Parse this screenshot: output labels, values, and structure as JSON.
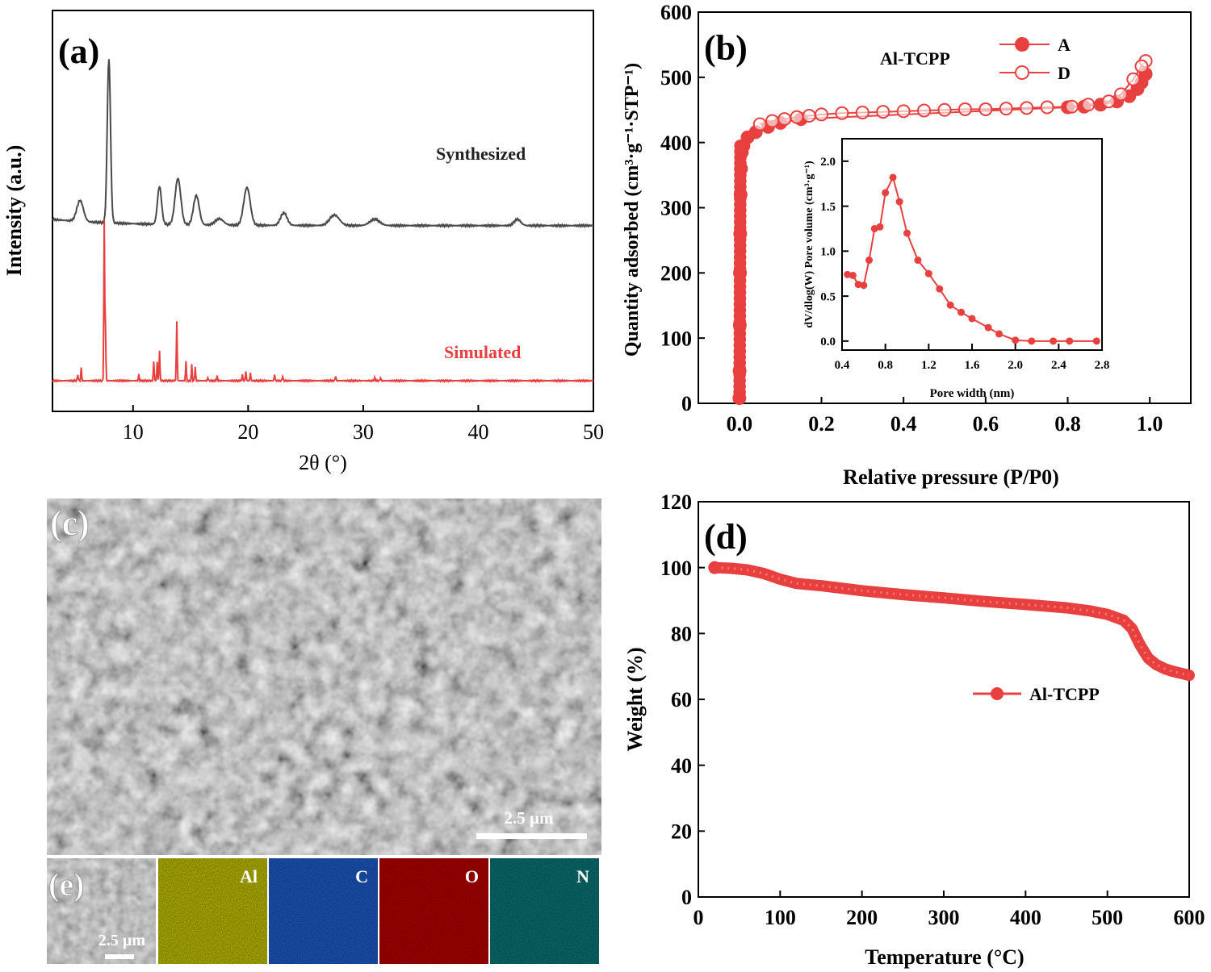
{
  "panels": {
    "a": {
      "tag": "(a)"
    },
    "b": {
      "tag": "(b)"
    },
    "c": {
      "tag": "(c)",
      "scalebar": "2.5 µm"
    },
    "d": {
      "tag": "(d)"
    },
    "e": {
      "tag": "(e)",
      "scalebar": "2.5 µm",
      "maps": [
        {
          "label": "Al",
          "color": "#c8c800"
        },
        {
          "label": "C",
          "color": "#1f5fd0"
        },
        {
          "label": "O",
          "color": "#c00000"
        },
        {
          "label": "N",
          "color": "#0b7b7b"
        }
      ]
    }
  },
  "colors": {
    "red": "#e8403f",
    "gray": "#4a4a4a"
  },
  "chart_data": [
    {
      "id": "a",
      "type": "line",
      "xlabel": "2θ (°)",
      "ylabel": "Intensity (a.u.)",
      "xlim": [
        3,
        50
      ],
      "xticks": [
        10,
        20,
        30,
        40,
        50
      ],
      "series": [
        {
          "name": "Synthesized",
          "color": "#4a4a4a",
          "peaks": [
            [
              5.4,
              0.1,
              0.4
            ],
            [
              7.9,
              0.78,
              0.2
            ],
            [
              12.3,
              0.18,
              0.25
            ],
            [
              13.9,
              0.22,
              0.35
            ],
            [
              15.5,
              0.14,
              0.35
            ],
            [
              17.5,
              0.03,
              0.5
            ],
            [
              19.9,
              0.18,
              0.4
            ],
            [
              23.1,
              0.06,
              0.4
            ],
            [
              27.5,
              0.05,
              0.6
            ],
            [
              31.0,
              0.03,
              0.6
            ],
            [
              43.4,
              0.03,
              0.4
            ]
          ]
        },
        {
          "name": "Simulated",
          "color": "#e8403f",
          "peaks": [
            [
              5.2,
              0.04,
              0.05
            ],
            [
              5.5,
              0.08,
              0.05
            ],
            [
              7.5,
              1.0,
              0.05
            ],
            [
              7.6,
              0.35,
              0.05
            ],
            [
              10.5,
              0.04,
              0.05
            ],
            [
              11.8,
              0.12,
              0.05
            ],
            [
              12.1,
              0.12,
              0.05
            ],
            [
              12.3,
              0.19,
              0.05
            ],
            [
              13.8,
              0.37,
              0.05
            ],
            [
              14.6,
              0.12,
              0.05
            ],
            [
              15.1,
              0.1,
              0.05
            ],
            [
              15.4,
              0.09,
              0.05
            ],
            [
              16.5,
              0.02,
              0.05
            ],
            [
              17.3,
              0.03,
              0.05
            ],
            [
              19.5,
              0.04,
              0.05
            ],
            [
              19.8,
              0.06,
              0.05
            ],
            [
              20.2,
              0.05,
              0.05
            ],
            [
              22.3,
              0.04,
              0.05
            ],
            [
              23.0,
              0.03,
              0.05
            ],
            [
              27.6,
              0.03,
              0.05
            ],
            [
              31.0,
              0.02,
              0.05
            ],
            [
              31.5,
              0.02,
              0.05
            ]
          ]
        }
      ]
    },
    {
      "id": "b",
      "type": "line",
      "xlabel": "Relative pressure (P/P0)",
      "ylabel": "Quantity adsorbed (cm³·g⁻¹·STP⁻¹)",
      "xlim": [
        -0.1,
        1.1
      ],
      "ylim": [
        0,
        600
      ],
      "xticks": [
        0.0,
        0.2,
        0.4,
        0.6,
        0.8,
        1.0
      ],
      "yticks": [
        0,
        100,
        200,
        300,
        400,
        500,
        600
      ],
      "annotation": "Al-TCPP",
      "series": [
        {
          "name": "A",
          "marker": "filled",
          "x": [
            0.0,
            0.0005,
            0.001,
            0.0015,
            0.002,
            0.003,
            0.004,
            0.006,
            0.01,
            0.02,
            0.04,
            0.07,
            0.1,
            0.15,
            0.8,
            0.84,
            0.88,
            0.92,
            0.95,
            0.97,
            0.98,
            0.99
          ],
          "y": [
            8,
            50,
            120,
            200,
            260,
            320,
            360,
            385,
            395,
            408,
            416,
            424,
            430,
            436,
            454,
            455,
            458,
            463,
            471,
            482,
            492,
            505
          ]
        },
        {
          "name": "D",
          "marker": "open",
          "x": [
            0.99,
            0.98,
            0.96,
            0.93,
            0.9,
            0.85,
            0.81,
            0.75,
            0.7,
            0.65,
            0.6,
            0.55,
            0.5,
            0.45,
            0.4,
            0.35,
            0.3,
            0.25,
            0.2,
            0.17,
            0.14,
            0.11,
            0.08,
            0.05
          ],
          "y": [
            525,
            517,
            497,
            474,
            463,
            458,
            455,
            454,
            453,
            452,
            451,
            451,
            450,
            449,
            448,
            447,
            446,
            445,
            443,
            441,
            439,
            436,
            433,
            428
          ]
        }
      ],
      "inset": {
        "xlabel": "Pore width (nm)",
        "ylabel": "dV/dlog(W) Pore volume (cm³·g⁻¹)",
        "xlim": [
          0.4,
          2.8
        ],
        "ylim": [
          -0.1,
          2.25
        ],
        "xticks": [
          0.4,
          0.8,
          1.2,
          1.6,
          2.0,
          2.4,
          2.8
        ],
        "yticks": [
          0.0,
          0.5,
          1.0,
          1.5,
          2.0
        ],
        "x": [
          0.45,
          0.5,
          0.55,
          0.6,
          0.65,
          0.7,
          0.75,
          0.8,
          0.87,
          0.93,
          1.0,
          1.1,
          1.2,
          1.3,
          1.4,
          1.5,
          1.6,
          1.75,
          1.85,
          2.0,
          2.15,
          2.35,
          2.5,
          2.75
        ],
        "y": [
          0.74,
          0.73,
          0.63,
          0.62,
          0.9,
          1.25,
          1.27,
          1.65,
          1.82,
          1.55,
          1.2,
          0.9,
          0.75,
          0.58,
          0.4,
          0.32,
          0.25,
          0.15,
          0.08,
          0.01,
          0.0,
          0.0,
          0.0,
          0.0
        ]
      }
    },
    {
      "id": "d",
      "type": "line",
      "xlabel": "Temperature (°C)",
      "ylabel": "Weight (%)",
      "xlim": [
        0,
        600
      ],
      "ylim": [
        0,
        120
      ],
      "xticks": [
        0,
        100,
        200,
        300,
        400,
        500,
        600
      ],
      "yticks": [
        0,
        20,
        40,
        60,
        80,
        100,
        120
      ],
      "series": [
        {
          "name": "Al-TCPP",
          "x": [
            20,
            40,
            60,
            80,
            100,
            120,
            150,
            200,
            250,
            300,
            350,
            400,
            450,
            480,
            500,
            520,
            530,
            540,
            550,
            560,
            570,
            580,
            590,
            600
          ],
          "y": [
            100,
            99.8,
            99.3,
            98.2,
            96.5,
            95.2,
            94.5,
            93.0,
            91.8,
            90.8,
            89.7,
            88.8,
            87.8,
            86.8,
            85.8,
            84.0,
            81.5,
            76.5,
            72.5,
            70.5,
            69.3,
            68.5,
            67.9,
            67.3
          ]
        }
      ]
    }
  ]
}
